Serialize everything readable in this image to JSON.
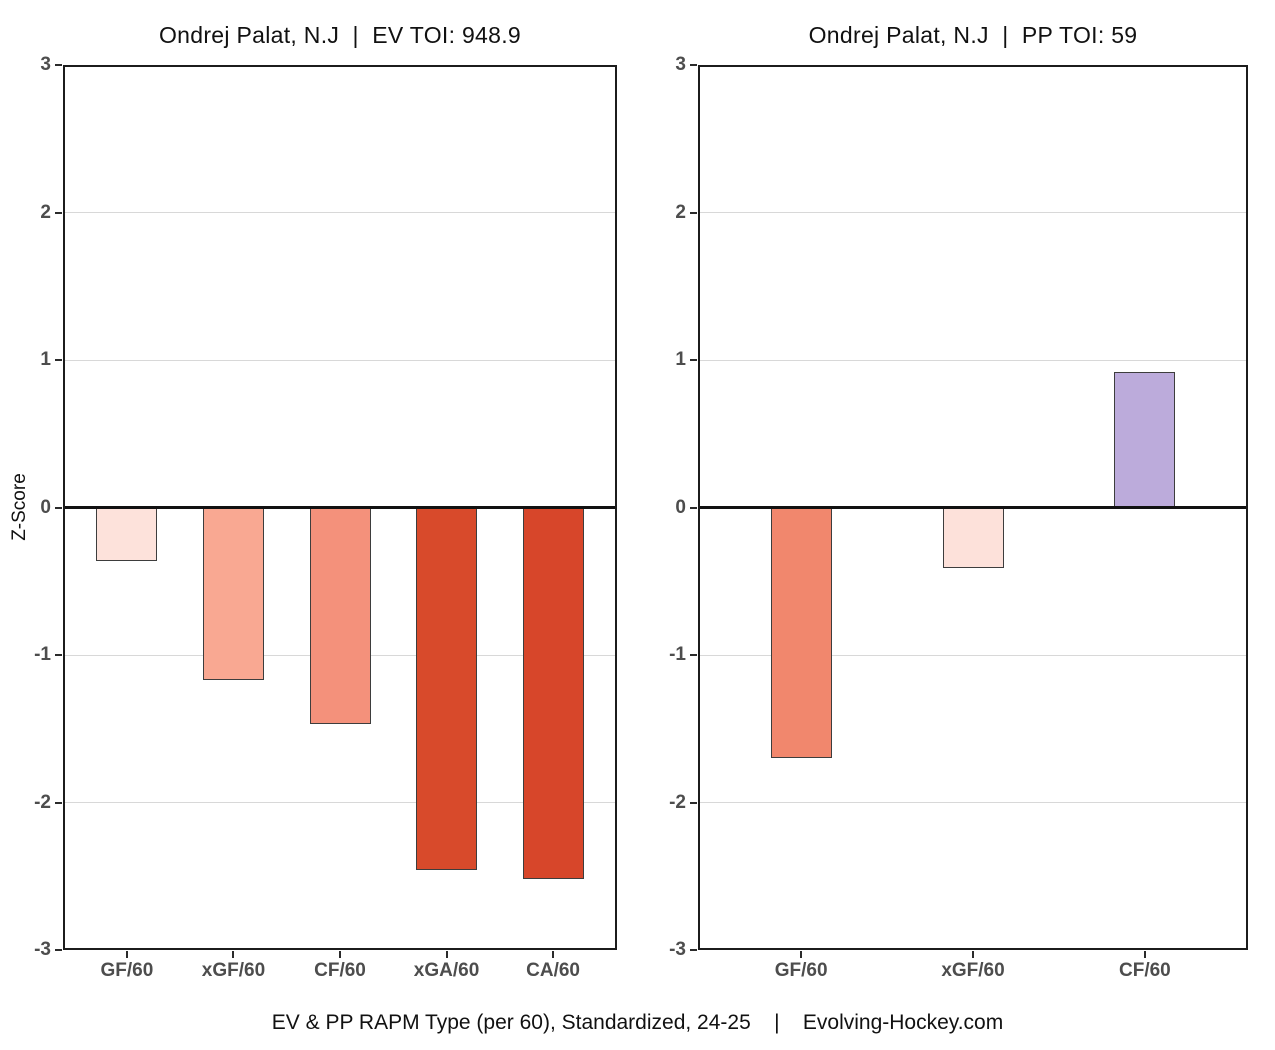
{
  "ylabel": "Z-Score",
  "caption": "EV & PP RAPM Type (per 60), Standardized, 24-25    |    Evolving-Hockey.com",
  "chart_data": [
    {
      "type": "bar",
      "title": "Ondrej Palat, N.J  |  EV TOI: 948.9",
      "categories": [
        "GF/60",
        "xGF/60",
        "CF/60",
        "xGA/60",
        "CA/60"
      ],
      "values": [
        -0.36,
        -1.17,
        -1.47,
        -2.46,
        -2.52
      ],
      "bar_colors": [
        "#FDE2DB",
        "#F9A892",
        "#F4917B",
        "#D84A2B",
        "#D7462A"
      ],
      "xlabel": "",
      "ylabel": "Z-Score",
      "ylim": [
        -3,
        3
      ],
      "yticks": [
        "3",
        "2",
        "1",
        "0",
        "-1",
        "-2",
        "-3"
      ],
      "grid": "horizontal-major",
      "legend": "none"
    },
    {
      "type": "bar",
      "title": "Ondrej Palat, N.J  |  PP TOI: 59",
      "categories": [
        "GF/60",
        "xGF/60",
        "CF/60"
      ],
      "values": [
        -1.7,
        -0.41,
        0.92
      ],
      "bar_colors": [
        "#F1876D",
        "#FDE1DA",
        "#BCABDB"
      ],
      "xlabel": "",
      "ylabel": "",
      "ylim": [
        -3,
        3
      ],
      "yticks": [
        "3",
        "2",
        "1",
        "0",
        "-1",
        "-2",
        "-3"
      ],
      "grid": "horizontal-major",
      "legend": "none"
    }
  ]
}
